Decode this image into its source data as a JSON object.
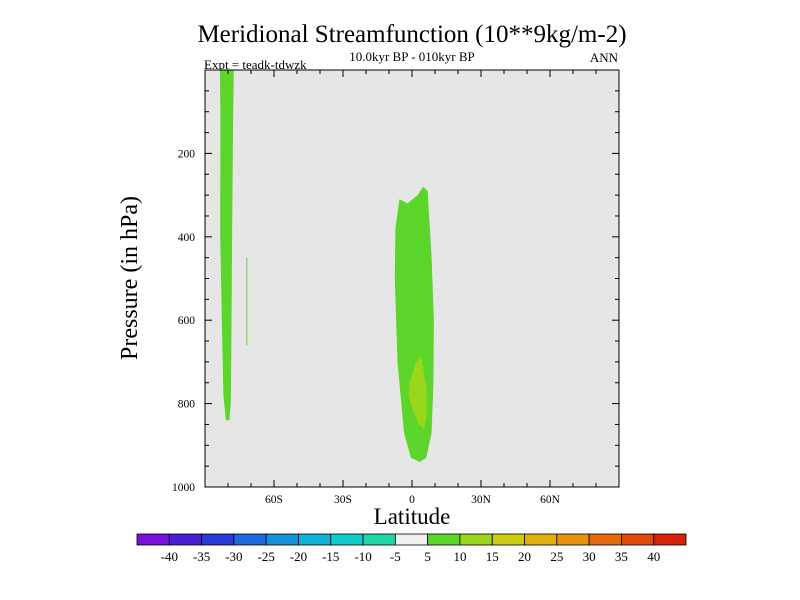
{
  "chart_data": {
    "type": "contour",
    "title": "Meridional Streamfunction (10**9kg/m-2)",
    "subtitle_center": "10.0kyr BP - 010kyr BP",
    "subtitle_left": "Expt = teadk-tdwzk",
    "subtitle_right": "ANN",
    "xlabel": "Latitude",
    "ylabel": "Pressure (in hPa)",
    "xlim": [
      -90,
      90
    ],
    "ylim": [
      1000,
      0
    ],
    "x_ticks": [
      {
        "value": -60,
        "label": "60S"
      },
      {
        "value": -30,
        "label": "30S"
      },
      {
        "value": 0,
        "label": "0"
      },
      {
        "value": 30,
        "label": "30N"
      },
      {
        "value": 60,
        "label": "60N"
      }
    ],
    "y_ticks": [
      {
        "value": 200,
        "label": "200"
      },
      {
        "value": 400,
        "label": "400"
      },
      {
        "value": 600,
        "label": "600"
      },
      {
        "value": 800,
        "label": "800"
      },
      {
        "value": 1000,
        "label": "1000"
      }
    ],
    "background_color": "#e6e6e6",
    "levels": [
      -40,
      -35,
      -30,
      -25,
      -20,
      -15,
      -10,
      -5,
      5,
      10,
      15,
      20,
      25,
      30,
      35,
      40
    ],
    "colorbar_labels": [
      "-40",
      "-35",
      "-30",
      "-25",
      "-20",
      "-15",
      "-10",
      "-5",
      "5",
      "10",
      "15",
      "20",
      "25",
      "30",
      "35",
      "40"
    ],
    "colors": [
      "#7a10e0",
      "#4a1ed8",
      "#2a3ad8",
      "#1e68e0",
      "#1692d8",
      "#10b4d6",
      "#10cccc",
      "#1ed6a8",
      "#f0f0f0",
      "#5cd62a",
      "#9ad61a",
      "#cccc10",
      "#deb20a",
      "#e6920a",
      "#e66a0a",
      "#e24a0a",
      "#d8200a"
    ],
    "regions": [
      {
        "name": "southern-high-lat-cell",
        "level_range": [
          5,
          10
        ],
        "color": "#5cd62a",
        "outline": [
          [
            -83.5,
            0
          ],
          [
            -77.5,
            0
          ],
          [
            -77.8,
            120
          ],
          [
            -78.2,
            400
          ],
          [
            -78.5,
            650
          ],
          [
            -78.8,
            800
          ],
          [
            -79.4,
            840
          ],
          [
            -80.9,
            840
          ],
          [
            -82.0,
            780
          ],
          [
            -82.6,
            620
          ],
          [
            -83.4,
            400
          ],
          [
            -83.3,
            100
          ]
        ]
      },
      {
        "name": "southern-thin-strip",
        "level_range": [
          5,
          10
        ],
        "color": "#5cd62a",
        "outline": [
          [
            -72.0,
            450
          ],
          [
            -71.6,
            450
          ],
          [
            -71.6,
            660
          ],
          [
            -72.0,
            660
          ]
        ]
      },
      {
        "name": "equatorial-cell",
        "level_range": [
          5,
          10
        ],
        "color": "#5cd62a",
        "outline": [
          [
            -5.5,
            310
          ],
          [
            -2.0,
            320
          ],
          [
            2.5,
            300
          ],
          [
            4.8,
            280
          ],
          [
            6.8,
            290
          ],
          [
            8.5,
            450
          ],
          [
            9.5,
            600
          ],
          [
            9.3,
            750
          ],
          [
            8.5,
            870
          ],
          [
            6.2,
            930
          ],
          [
            3.3,
            940
          ],
          [
            -0.5,
            930
          ],
          [
            -3.5,
            870
          ],
          [
            -6.3,
            700
          ],
          [
            -7.5,
            500
          ],
          [
            -7.2,
            380
          ]
        ]
      },
      {
        "name": "equatorial-core",
        "level_range": [
          10,
          15
        ],
        "color": "#9ad61a",
        "outline": [
          [
            -1.0,
            750
          ],
          [
            1.5,
            705
          ],
          [
            3.8,
            685
          ],
          [
            6.3,
            760
          ],
          [
            6.3,
            830
          ],
          [
            5.2,
            860
          ],
          [
            3.0,
            850
          ],
          [
            0.0,
            810
          ],
          [
            -1.5,
            780
          ]
        ]
      }
    ]
  }
}
